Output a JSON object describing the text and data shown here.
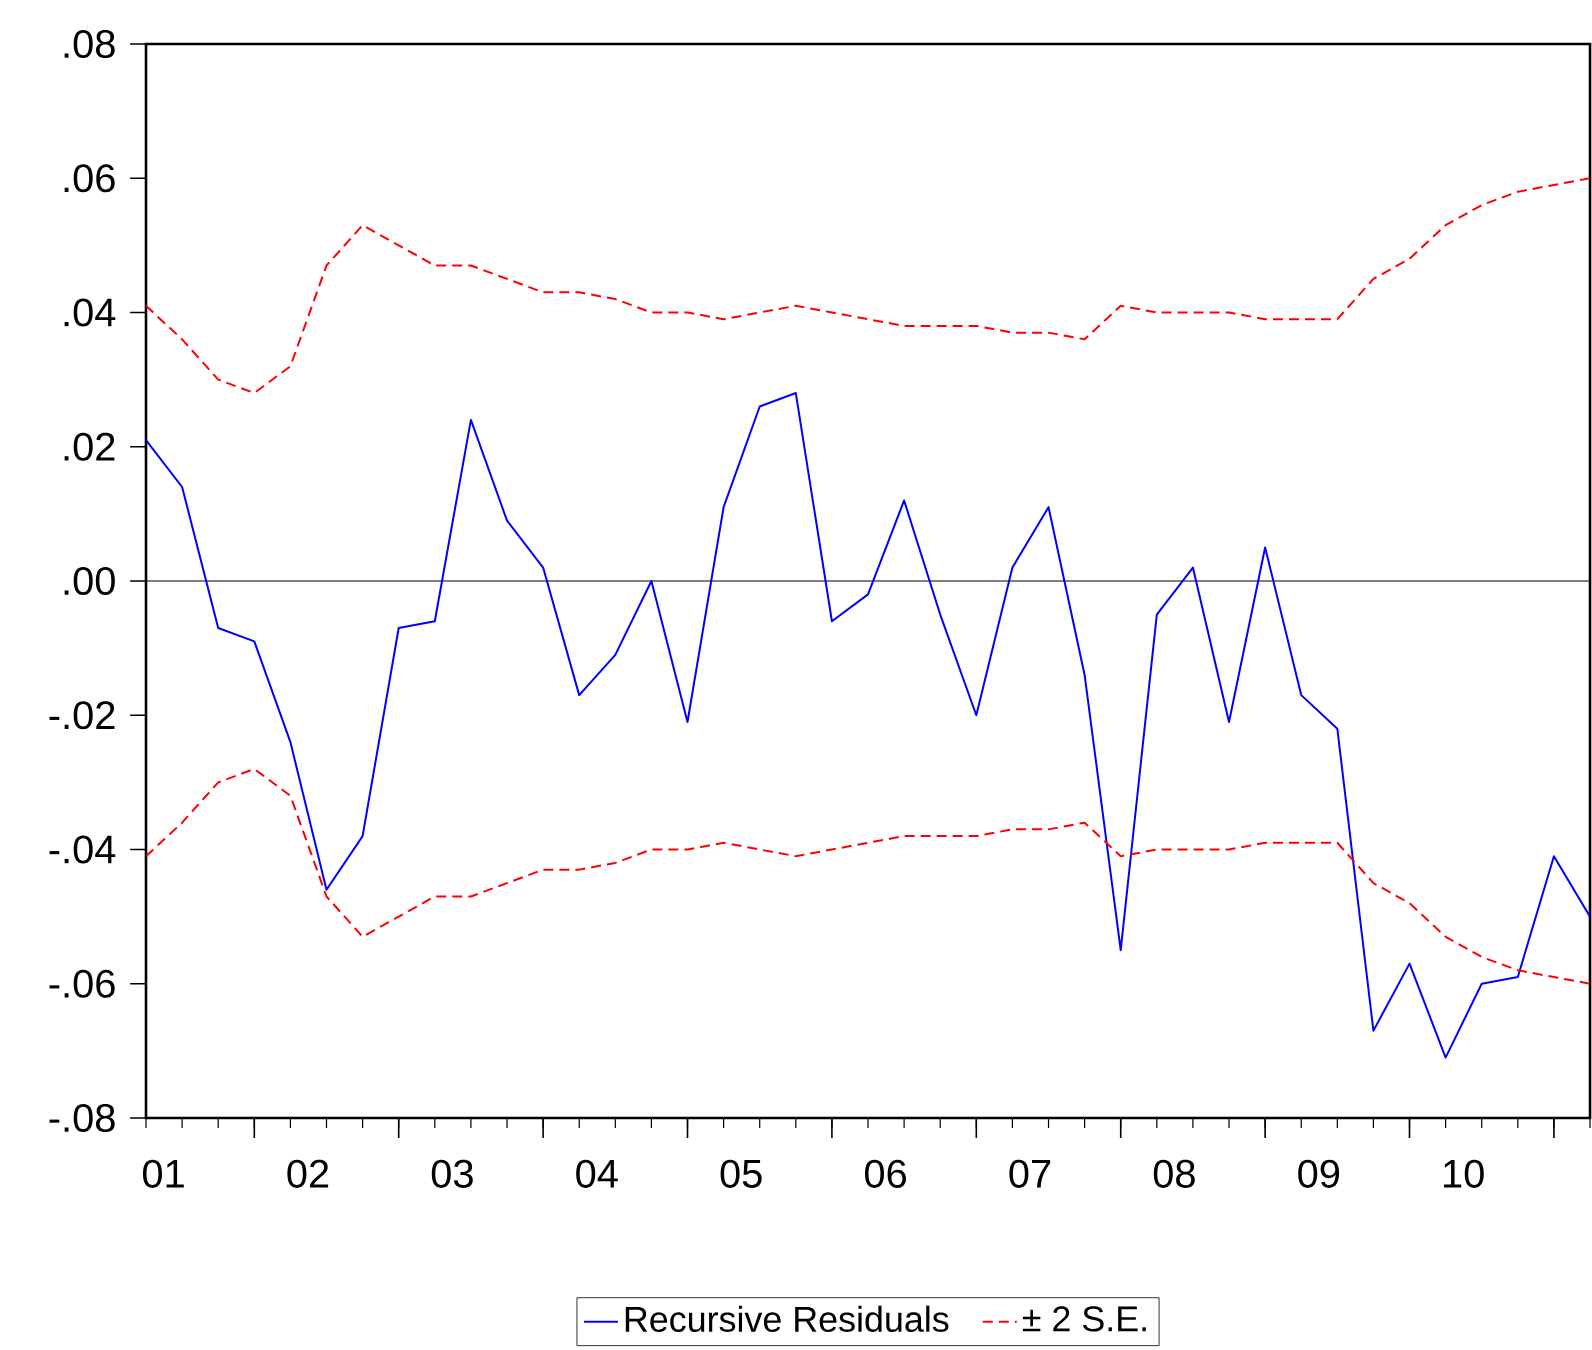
{
  "chart_data": {
    "type": "line",
    "x": [
      "2001-04",
      "2001-07",
      "2001-10",
      "2002-01",
      "2002-04",
      "2002-07",
      "2002-10",
      "2003-01",
      "2003-04",
      "2003-07",
      "2003-10",
      "2004-01",
      "2004-04",
      "2004-07",
      "2004-10",
      "2005-01",
      "2005-04",
      "2005-07",
      "2005-10",
      "2006-01",
      "2006-04",
      "2006-07",
      "2006-10",
      "2007-01",
      "2007-04",
      "2007-07",
      "2007-10",
      "2008-01",
      "2008-04",
      "2008-07",
      "2008-10",
      "2009-01",
      "2009-04",
      "2009-07",
      "2009-10",
      "2010-01",
      "2010-04",
      "2010-07",
      "2010-10",
      "2011-01",
      "2011-04"
    ],
    "series": [
      {
        "name": "Recursive Residuals",
        "color": "#0000ff",
        "line_style": "solid",
        "values": [
          0.021,
          0.014,
          -0.007,
          -0.009,
          -0.024,
          -0.046,
          -0.038,
          -0.007,
          -0.006,
          0.024,
          0.009,
          0.002,
          -0.017,
          -0.011,
          0.0,
          -0.021,
          0.011,
          0.026,
          0.028,
          -0.006,
          -0.002,
          0.012,
          -0.005,
          -0.02,
          0.002,
          0.011,
          -0.014,
          -0.055,
          -0.005,
          0.002,
          -0.021,
          0.005,
          -0.017,
          -0.022,
          -0.067,
          -0.057,
          -0.071,
          -0.06,
          -0.059,
          -0.041,
          -0.05
        ]
      },
      {
        "name": "± 2 S.E.",
        "color": "#ff0000",
        "line_style": "dashed",
        "values": [
          0.041,
          0.036,
          0.03,
          0.028,
          0.032,
          0.047,
          0.053,
          0.05,
          0.047,
          0.047,
          0.045,
          0.043,
          0.043,
          0.042,
          0.04,
          0.04,
          0.039,
          0.04,
          0.041,
          0.04,
          0.039,
          0.038,
          0.038,
          0.038,
          0.037,
          0.037,
          0.036,
          0.041,
          0.04,
          0.04,
          0.04,
          0.039,
          0.039,
          0.039,
          0.045,
          0.048,
          0.053,
          0.056,
          0.058,
          0.059,
          0.06
        ]
      },
      {
        "color": "#ff0000",
        "line_style": "dashed",
        "values": [
          -0.041,
          -0.036,
          -0.03,
          -0.028,
          -0.032,
          -0.047,
          -0.053,
          -0.05,
          -0.047,
          -0.047,
          -0.045,
          -0.043,
          -0.043,
          -0.042,
          -0.04,
          -0.04,
          -0.039,
          -0.04,
          -0.041,
          -0.04,
          -0.039,
          -0.038,
          -0.038,
          -0.038,
          -0.037,
          -0.037,
          -0.036,
          -0.041,
          -0.04,
          -0.04,
          -0.04,
          -0.039,
          -0.039,
          -0.039,
          -0.045,
          -0.048,
          -0.053,
          -0.056,
          -0.058,
          -0.059,
          -0.06
        ]
      }
    ],
    "xlim": [
      "2001-04",
      "2011-04"
    ],
    "xticks": [
      {
        "value": "2001-05-15",
        "label": "01"
      },
      {
        "value": "2002-05-15",
        "label": "02"
      },
      {
        "value": "2003-05-15",
        "label": "03"
      },
      {
        "value": "2004-05-15",
        "label": "04"
      },
      {
        "value": "2005-05-15",
        "label": "05"
      },
      {
        "value": "2006-05-15",
        "label": "06"
      },
      {
        "value": "2007-05-15",
        "label": "07"
      },
      {
        "value": "2008-05-15",
        "label": "08"
      },
      {
        "value": "2009-05-15",
        "label": "09"
      },
      {
        "value": "2010-05-15",
        "label": "10"
      },
      {
        "value": "2002",
        "label": null
      },
      {
        "value": "2003",
        "label": null
      },
      {
        "value": "2004",
        "label": null
      },
      {
        "value": "2005",
        "label": null
      },
      {
        "value": "2006",
        "label": null
      },
      {
        "value": "2007",
        "label": null
      },
      {
        "value": "2008",
        "label": null
      },
      {
        "value": "2009",
        "label": null
      },
      {
        "value": "2010",
        "label": null
      },
      {
        "value": "2011",
        "label": null
      }
    ],
    "ylim": [
      -0.08,
      0.08
    ],
    "yticks": [
      {
        "value": -0.08,
        "label": "-.08"
      },
      {
        "value": -0.06,
        "label": "-.06"
      },
      {
        "value": -0.04,
        "label": "-.04"
      },
      {
        "value": -0.02,
        "label": "-.02"
      },
      {
        "value": 0,
        "label": ".00"
      },
      {
        "value": 0.02,
        "label": ".02"
      },
      {
        "value": 0.04,
        "label": ".04"
      },
      {
        "value": 0.06,
        "label": ".06"
      },
      {
        "value": 0.08,
        "label": ".08"
      }
    ],
    "ref_lines": [
      {
        "axis": "y",
        "value": 0,
        "color": "#000000"
      }
    ],
    "grid": false,
    "legend": "bottom",
    "marker": "none"
  }
}
